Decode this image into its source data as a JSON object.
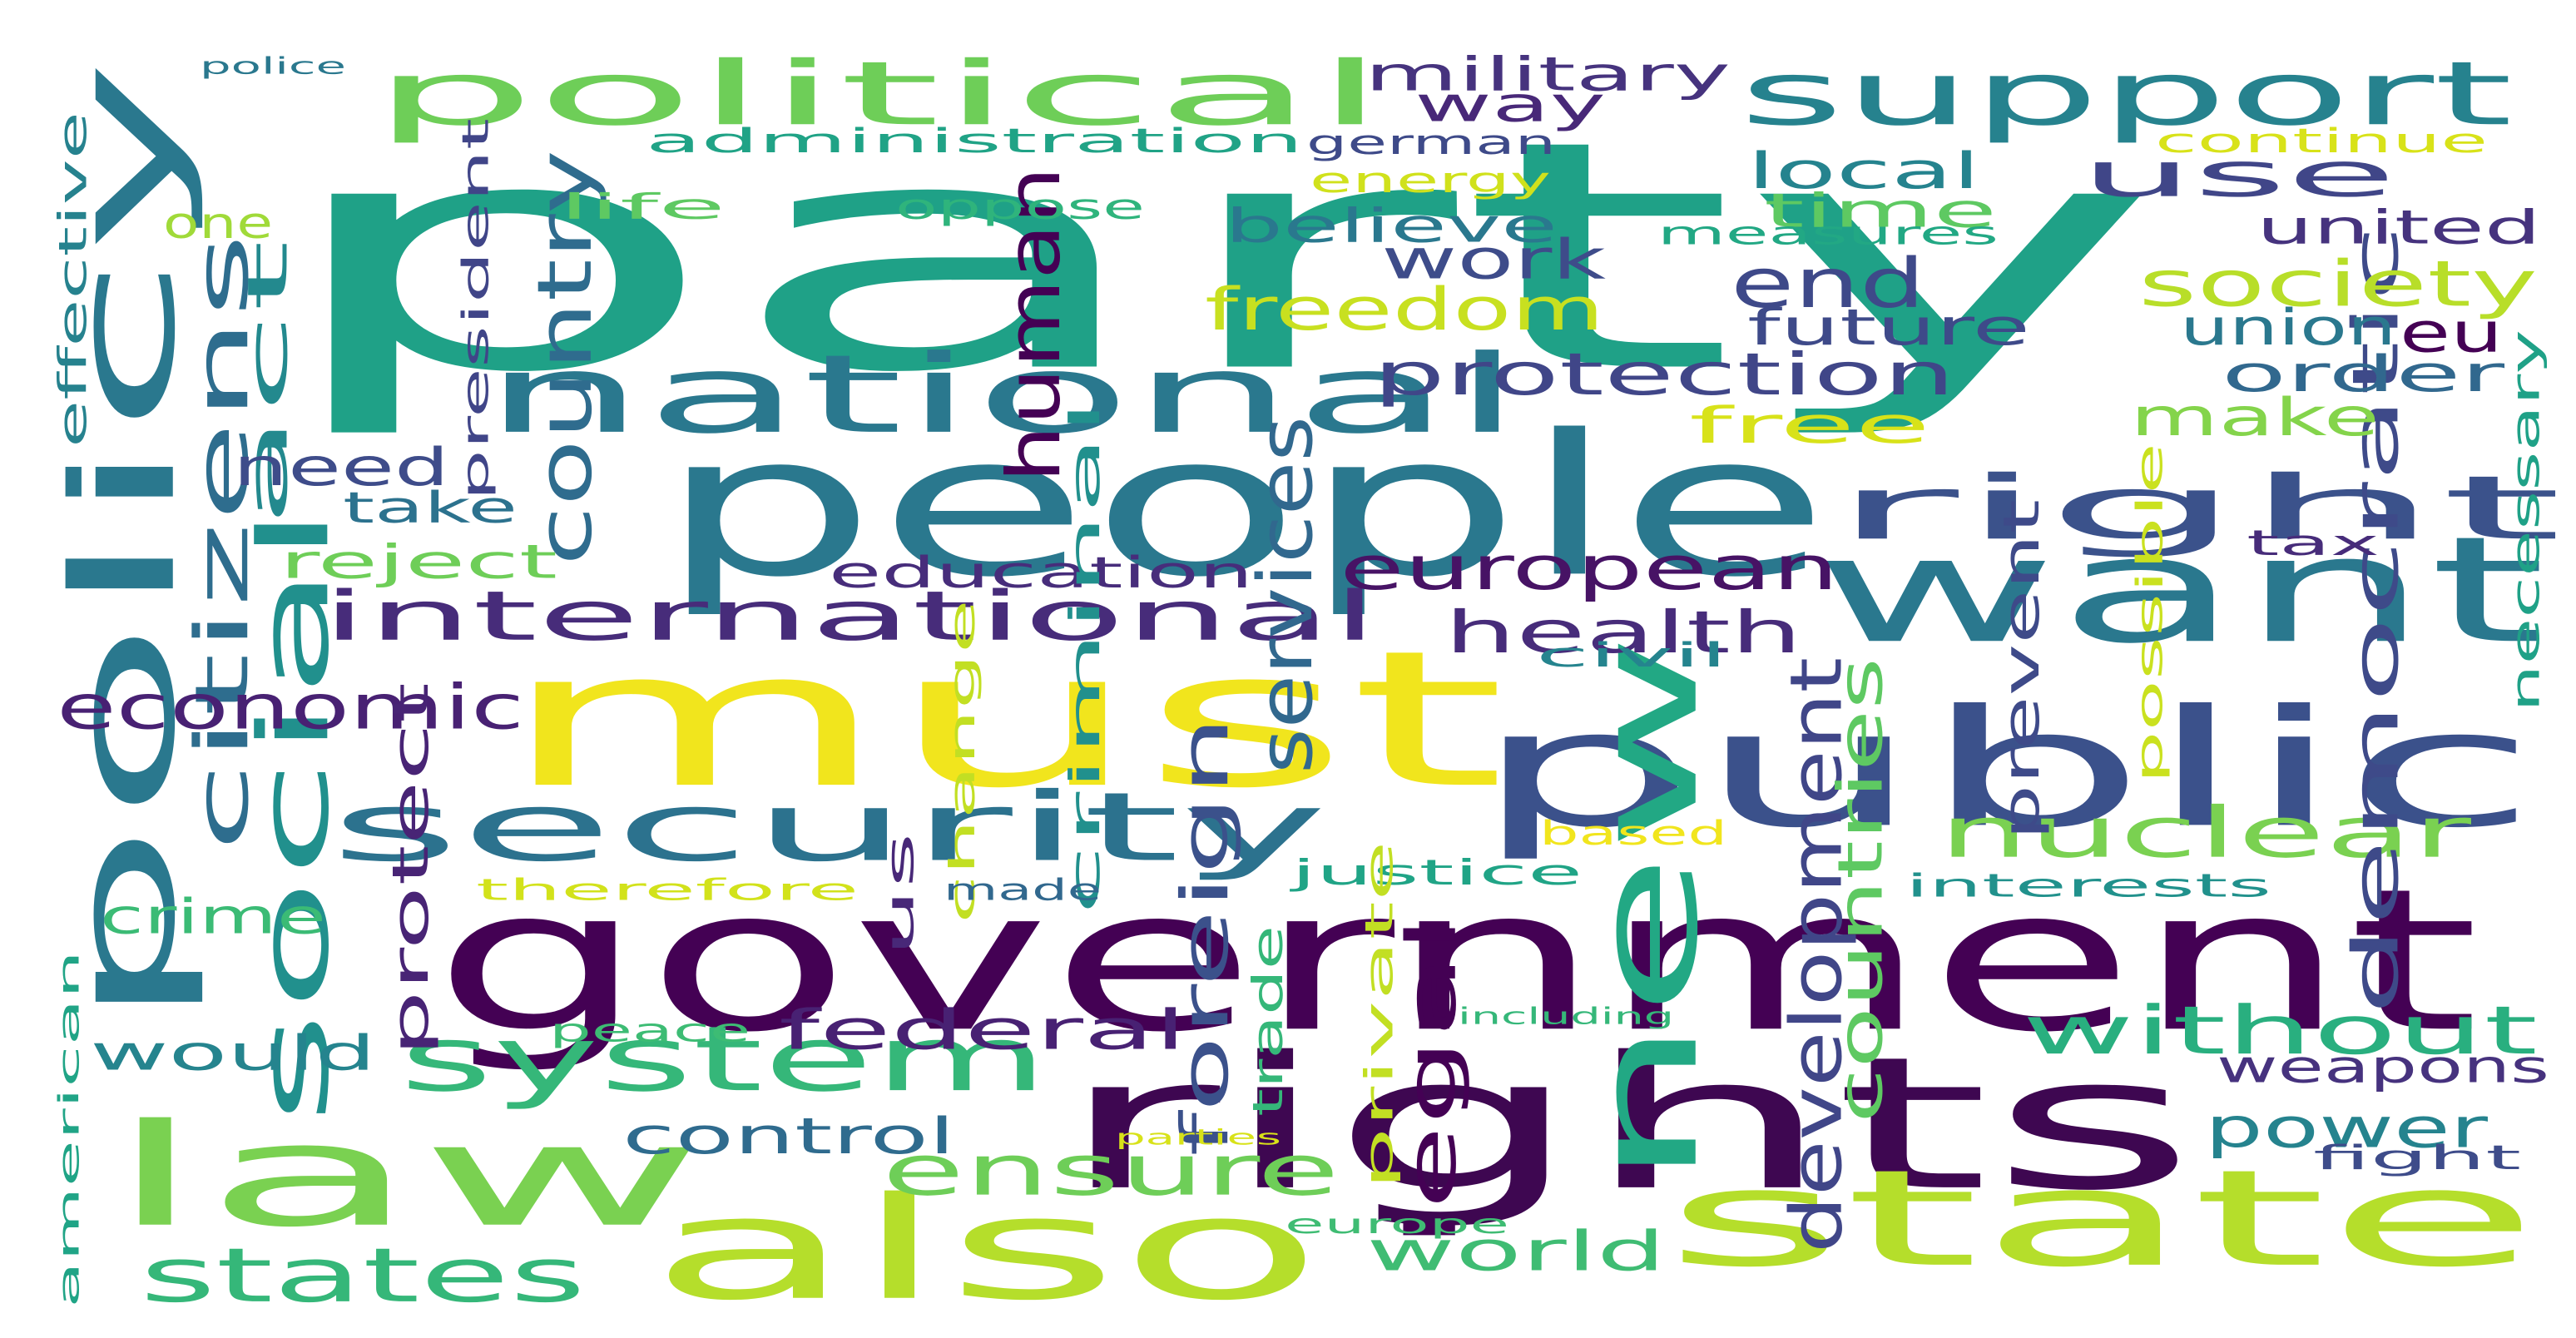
{
  "words": [
    {
      "text": "party",
      "color": "#1fa187",
      "rotated": false
    },
    {
      "text": "must",
      "color": "#f1e51d",
      "rotated": false
    },
    {
      "text": "people",
      "color": "#2a788e",
      "rotated": false
    },
    {
      "text": "government",
      "color": "#440154",
      "rotated": false
    },
    {
      "text": "rights",
      "color": "#3e0751",
      "rotated": false
    },
    {
      "text": "public",
      "color": "#3b518b",
      "rotated": false
    },
    {
      "text": "state",
      "color": "#b5de2b",
      "rotated": false
    },
    {
      "text": "also",
      "color": "#b5de2b",
      "rotated": false
    },
    {
      "text": "law",
      "color": "#7ad151",
      "rotated": false
    },
    {
      "text": "want",
      "color": "#2a788e",
      "rotated": false
    },
    {
      "text": "policy",
      "color": "#2a788e",
      "rotated": true
    },
    {
      "text": "national",
      "color": "#2a788e",
      "rotated": false
    },
    {
      "text": "security",
      "color": "#2c728e",
      "rotated": false
    },
    {
      "text": "new",
      "color": "#22a884",
      "rotated": true
    },
    {
      "text": "political",
      "color": "#6ece58",
      "rotated": false
    },
    {
      "text": "support",
      "color": "#26828e",
      "rotated": false
    },
    {
      "text": "right",
      "color": "#3b528b",
      "rotated": false
    },
    {
      "text": "social",
      "color": "#21908d",
      "rotated": true
    },
    {
      "text": "system",
      "color": "#35b779",
      "rotated": false
    },
    {
      "text": "international",
      "color": "#472c7a",
      "rotated": false
    },
    {
      "text": "citizens",
      "color": "#2e6d8e",
      "rotated": true
    },
    {
      "text": "nuclear",
      "color": "#7ad151",
      "rotated": false
    },
    {
      "text": "ensure",
      "color": "#6ece58",
      "rotated": false
    },
    {
      "text": "european",
      "color": "#471365",
      "rotated": false
    },
    {
      "text": "democratic",
      "color": "#3e4a89",
      "rotated": true
    },
    {
      "text": "economic",
      "color": "#482173",
      "rotated": false
    },
    {
      "text": "states",
      "color": "#35b779",
      "rotated": false
    },
    {
      "text": "end",
      "color": "#3e4989",
      "rotated": false
    },
    {
      "text": "without",
      "color": "#29af7f",
      "rotated": false
    },
    {
      "text": "services",
      "color": "#31688e",
      "rotated": true
    },
    {
      "text": "foreign",
      "color": "#3b518b",
      "rotated": true
    },
    {
      "text": "legal",
      "color": "#440154",
      "rotated": true
    },
    {
      "text": "development",
      "color": "#404688",
      "rotated": true
    },
    {
      "text": "human",
      "color": "#440154",
      "rotated": true
    },
    {
      "text": "freedom",
      "color": "#c8e020",
      "rotated": false
    },
    {
      "text": "protection",
      "color": "#404688",
      "rotated": false
    },
    {
      "text": "world",
      "color": "#3fbc73",
      "rotated": false
    },
    {
      "text": "use",
      "color": "#404688",
      "rotated": false
    },
    {
      "text": "society",
      "color": "#b8de29",
      "rotated": false
    },
    {
      "text": "health",
      "color": "#472c7a",
      "rotated": false
    },
    {
      "text": "federal",
      "color": "#482173",
      "rotated": false
    },
    {
      "text": "country",
      "color": "#2f6c8e",
      "rotated": true
    },
    {
      "text": "education",
      "color": "#472d7b",
      "rotated": false
    },
    {
      "text": "military",
      "color": "#46337e",
      "rotated": false
    },
    {
      "text": "work",
      "color": "#3e4c8a",
      "rotated": false
    },
    {
      "text": "control",
      "color": "#2f6b8e",
      "rotated": false
    },
    {
      "text": "countries",
      "color": "#5ec962",
      "rotated": true
    },
    {
      "text": "power",
      "color": "#25838e",
      "rotated": false
    },
    {
      "text": "weapons",
      "color": "#46327e",
      "rotated": false
    },
    {
      "text": "would",
      "color": "#25848e",
      "rotated": false
    },
    {
      "text": "crime",
      "color": "#3bbb75",
      "rotated": false
    },
    {
      "text": "protect",
      "color": "#482475",
      "rotated": true
    },
    {
      "text": "act",
      "color": "#23898e",
      "rotated": true
    },
    {
      "text": "need",
      "color": "#3e4c8a",
      "rotated": false
    },
    {
      "text": "make",
      "color": "#84d44b",
      "rotated": false
    },
    {
      "text": "order",
      "color": "#31688e",
      "rotated": false
    },
    {
      "text": "local",
      "color": "#25838e",
      "rotated": false
    },
    {
      "text": "believe",
      "color": "#2a788e",
      "rotated": false
    },
    {
      "text": "future",
      "color": "#3e4a89",
      "rotated": false
    },
    {
      "text": "prevent",
      "color": "#3e4a89",
      "rotated": true
    },
    {
      "text": "union",
      "color": "#2a788e",
      "rotated": false
    },
    {
      "text": "eu",
      "color": "#440154",
      "rotated": false
    },
    {
      "text": "united",
      "color": "#46337e",
      "rotated": false
    },
    {
      "text": "free",
      "color": "#d8e219",
      "rotated": false
    },
    {
      "text": "reject",
      "color": "#6ece58",
      "rotated": false
    },
    {
      "text": "take",
      "color": "#2c728e",
      "rotated": false
    },
    {
      "text": "one",
      "color": "#a0da39",
      "rotated": false
    },
    {
      "text": "way",
      "color": "#482878",
      "rotated": false
    },
    {
      "text": "german",
      "color": "#3e4a89",
      "rotated": false
    },
    {
      "text": "administration",
      "color": "#20a386",
      "rotated": false
    },
    {
      "text": "time",
      "color": "#5ec962",
      "rotated": false
    },
    {
      "text": "energy",
      "color": "#d0e11c",
      "rotated": false
    },
    {
      "text": "civil",
      "color": "#25848e",
      "rotated": false
    },
    {
      "text": "tax",
      "color": "#472c7a",
      "rotated": false
    },
    {
      "text": "interests",
      "color": "#21918c",
      "rotated": false
    },
    {
      "text": "justice",
      "color": "#20a486",
      "rotated": false
    },
    {
      "text": "peace",
      "color": "#3dbc74",
      "rotated": false
    },
    {
      "text": "criminal",
      "color": "#21908d",
      "rotated": true
    },
    {
      "text": "effective",
      "color": "#26828e",
      "rotated": true
    },
    {
      "text": "american",
      "color": "#20a486",
      "rotated": true
    },
    {
      "text": "necessary",
      "color": "#1fa187",
      "rotated": true
    },
    {
      "text": "possible",
      "color": "#cae11f",
      "rotated": true
    },
    {
      "text": "president",
      "color": "#404588",
      "rotated": true
    },
    {
      "text": "change",
      "color": "#c2df23",
      "rotated": true
    },
    {
      "text": "private",
      "color": "#c2df23",
      "rotated": true
    },
    {
      "text": "trade",
      "color": "#35b779",
      "rotated": true
    },
    {
      "text": "us",
      "color": "#482878",
      "rotated": true
    },
    {
      "text": "continue",
      "color": "#d8e219",
      "rotated": false
    },
    {
      "text": "measures",
      "color": "#22a884",
      "rotated": false
    },
    {
      "text": "oppose",
      "color": "#2fb47c",
      "rotated": false
    },
    {
      "text": "life",
      "color": "#5ec962",
      "rotated": false
    },
    {
      "text": "therefore",
      "color": "#d2e21b",
      "rotated": false
    },
    {
      "text": "made",
      "color": "#31688e",
      "rotated": false
    },
    {
      "text": "based",
      "color": "#f1e51d",
      "rotated": false
    },
    {
      "text": "europe",
      "color": "#3fbc73",
      "rotated": false
    },
    {
      "text": "fight",
      "color": "#3e4c8a",
      "rotated": false
    },
    {
      "text": "police",
      "color": "#2a788e",
      "rotated": false
    },
    {
      "text": "including",
      "color": "#35b779",
      "rotated": false
    },
    {
      "text": "parties",
      "color": "#d8e219",
      "rotated": false
    }
  ]
}
